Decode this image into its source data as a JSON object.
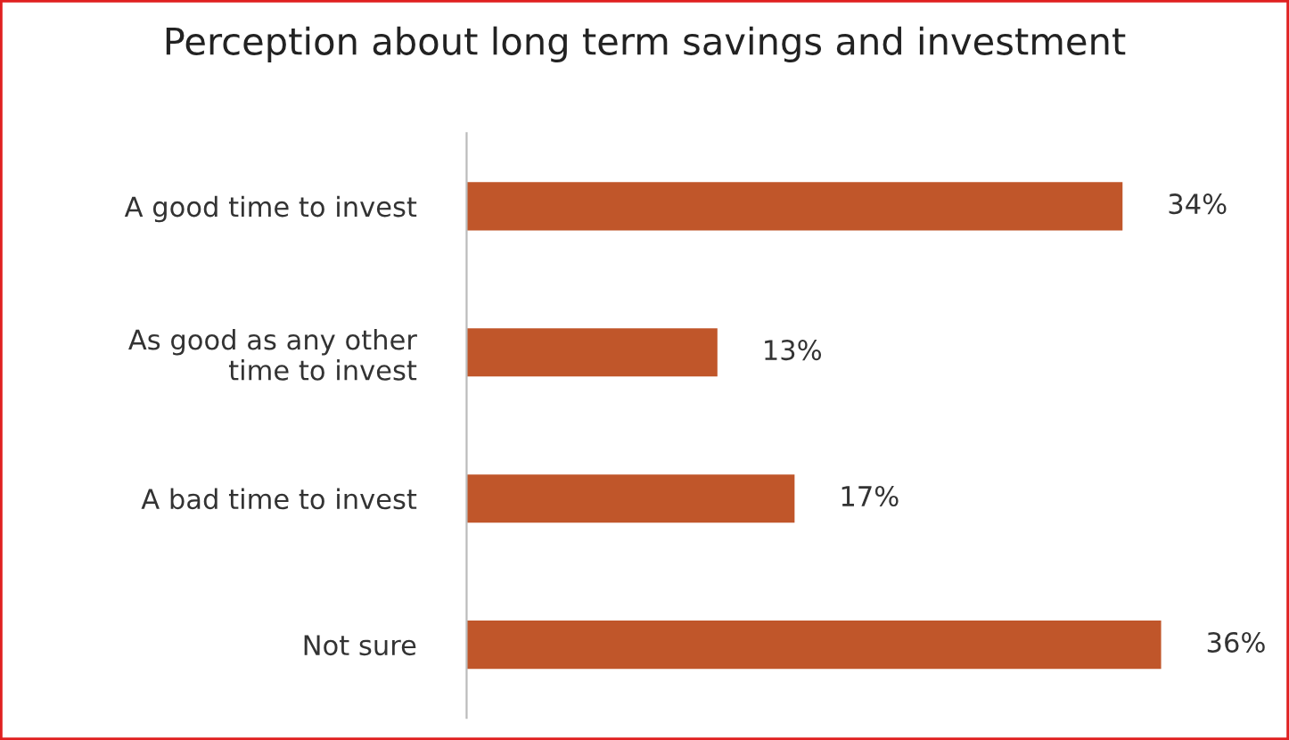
{
  "chart_data": {
    "type": "bar",
    "orientation": "horizontal",
    "title": "Perception about long term savings and investment",
    "categories": [
      "A good time to invest",
      "As good as any other\ntime to invest",
      "A bad time to invest",
      "Not sure"
    ],
    "values": [
      34,
      13,
      17,
      36
    ],
    "value_labels": [
      "34%",
      "13%",
      "17%",
      "36%"
    ],
    "color": "#c0562a",
    "tick_labels": "y",
    "grid": false,
    "legend": false
  }
}
